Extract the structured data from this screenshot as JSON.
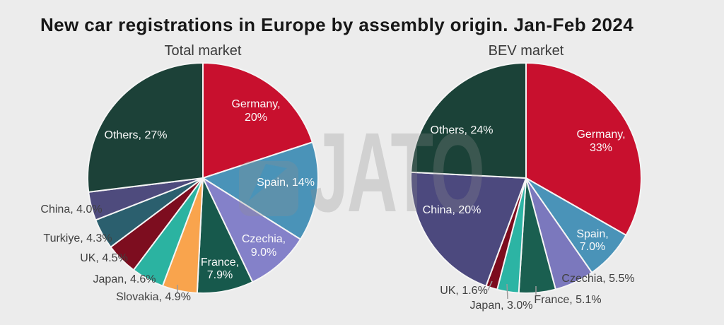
{
  "page": {
    "title": "New car registrations in Europe by assembly origin. Jan-Feb 2024",
    "background_color": "#ececec"
  },
  "watermark": {
    "text": "JATO",
    "icon": "jato-arrow-logo",
    "color": "#8f8f8f"
  },
  "label_colors": {
    "inside": "#fafafa",
    "outside": "#414141",
    "leader_line": "#9a9a9a"
  },
  "chart_data": [
    {
      "type": "pie",
      "title": "Total market",
      "unit": "%",
      "legend_position": "none",
      "slices": [
        {
          "category": "Germany",
          "value": 20,
          "label_lines": [
            "Germany,",
            "20%"
          ],
          "color": "#c8102e",
          "label_position": "inside"
        },
        {
          "category": "Spain",
          "value": 14,
          "label_lines": [
            "Spain, 14%"
          ],
          "color": "#4a93b8",
          "label_position": "inside"
        },
        {
          "category": "Czechia",
          "value": 9.0,
          "label_lines": [
            "Czechia,",
            "9.0%"
          ],
          "color": "#8481c9",
          "label_position": "inside"
        },
        {
          "category": "France",
          "value": 7.9,
          "label_lines": [
            "France,",
            "7.9%"
          ],
          "color": "#17594c",
          "label_position": "inside"
        },
        {
          "category": "Slovakia",
          "value": 4.9,
          "label_lines": [
            "Slovakia, 4.9%"
          ],
          "color": "#f9a44d",
          "label_position": "outside"
        },
        {
          "category": "Japan",
          "value": 4.6,
          "label_lines": [
            "Japan, 4.6%"
          ],
          "color": "#2bb3a1",
          "label_position": "outside"
        },
        {
          "category": "UK",
          "value": 4.5,
          "label_lines": [
            "UK, 4.5%"
          ],
          "color": "#7d0d1f",
          "label_position": "outside"
        },
        {
          "category": "Turkiye",
          "value": 4.3,
          "label_lines": [
            "Turkiye, 4.3%"
          ],
          "color": "#2b5f6e",
          "label_position": "outside"
        },
        {
          "category": "China",
          "value": 4.0,
          "label_lines": [
            "China, 4.0%"
          ],
          "color": "#4e4b7d",
          "label_position": "outside"
        },
        {
          "category": "Others",
          "value": 27,
          "label_lines": [
            "Others, 27%"
          ],
          "color": "#1c4138",
          "label_position": "inside"
        }
      ]
    },
    {
      "type": "pie",
      "title": "BEV market",
      "unit": "%",
      "legend_position": "none",
      "slices": [
        {
          "category": "Germany",
          "value": 33,
          "label_lines": [
            "Germany,",
            "33%"
          ],
          "color": "#c8102e",
          "label_position": "inside"
        },
        {
          "category": "Spain",
          "value": 7.0,
          "label_lines": [
            "Spain,",
            "7.0%"
          ],
          "color": "#4a93b8",
          "label_position": "inside"
        },
        {
          "category": "Czechia",
          "value": 5.5,
          "label_lines": [
            "Czechia, 5.5%"
          ],
          "color": "#7b78bd",
          "label_position": "outside"
        },
        {
          "category": "France",
          "value": 5.1,
          "label_lines": [
            "France, 5.1%"
          ],
          "color": "#1a5f50",
          "label_position": "outside"
        },
        {
          "category": "Japan",
          "value": 3.0,
          "label_lines": [
            "Japan, 3.0%"
          ],
          "color": "#2cb4a4",
          "label_position": "outside"
        },
        {
          "category": "UK",
          "value": 1.6,
          "label_lines": [
            "UK, 1.6%"
          ],
          "color": "#7d0c1e",
          "label_position": "outside"
        },
        {
          "category": "China",
          "value": 20,
          "label_lines": [
            "China, 20%"
          ],
          "color": "#4c497e",
          "label_position": "inside"
        },
        {
          "category": "Others",
          "value": 24,
          "label_lines": [
            "Others, 24%"
          ],
          "color": "#1b4238",
          "label_position": "inside"
        }
      ]
    }
  ]
}
